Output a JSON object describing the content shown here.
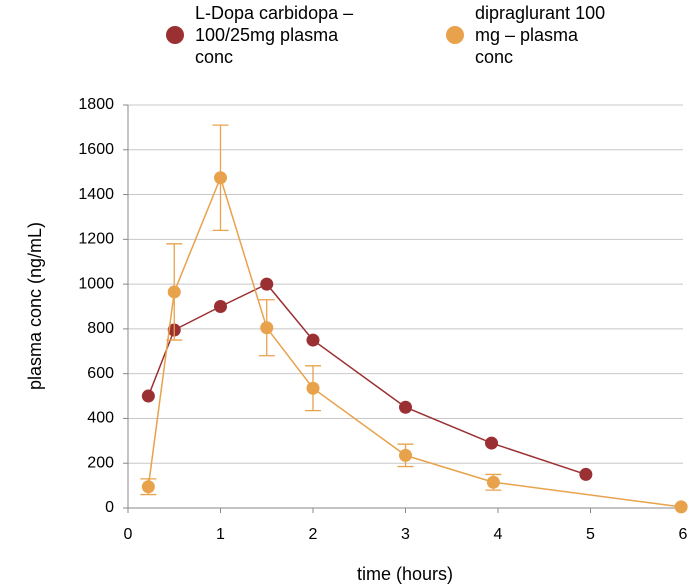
{
  "chart_data": {
    "type": "line",
    "x_label": "time (hours)",
    "y_label": "plasma conc (ng/mL)",
    "xlim": [
      0,
      6
    ],
    "xticks": [
      0,
      1,
      2,
      3,
      4,
      5,
      6
    ],
    "ylim": [
      0,
      1800
    ],
    "yticks": [
      0,
      200,
      400,
      600,
      800,
      1000,
      1200,
      1400,
      1600,
      1800
    ],
    "grid": true,
    "legend": "top",
    "series": [
      {
        "name": "L-Dopa carbidopa – 100/25mg plasma conc",
        "color": "#9b3032",
        "x": [
          0.22,
          0.5,
          1,
          1.5,
          2,
          3,
          3.93,
          4.95
        ],
        "values": [
          500,
          795,
          900,
          1000,
          750,
          450,
          290,
          150
        ]
      },
      {
        "name": "dipraglurant 100 mg – plasma conc",
        "color": "#e8a24c",
        "x": [
          0.22,
          0.5,
          1,
          1.5,
          2,
          3,
          3.95,
          5.98
        ],
        "values": [
          95,
          965,
          1475,
          805,
          535,
          235,
          115,
          5
        ],
        "errors": [
          35,
          215,
          235,
          125,
          100,
          50,
          35,
          0
        ]
      }
    ]
  }
}
